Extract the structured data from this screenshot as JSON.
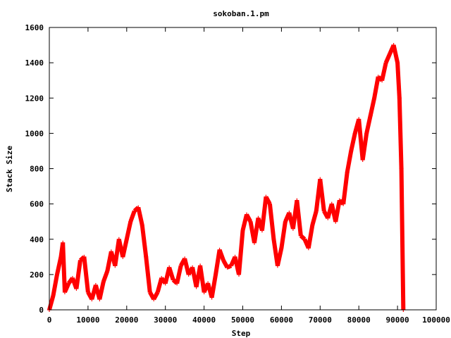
{
  "chart_data": {
    "type": "scatter",
    "title": "sokoban.1.pm",
    "xlabel": "Step",
    "ylabel": "Stack Size",
    "xlim": [
      0,
      100000
    ],
    "ylim": [
      0,
      1600
    ],
    "xticks": [
      "0",
      "10000",
      "20000",
      "30000",
      "40000",
      "50000",
      "60000",
      "70000",
      "80000",
      "90000",
      "100000"
    ],
    "yticks": [
      "0",
      "200",
      "400",
      "600",
      "800",
      "1000",
      "1200",
      "1400",
      "1600"
    ],
    "grid": false,
    "legend": "none",
    "marker": "plus",
    "series": [
      {
        "color": "#ff0000",
        "points": [
          [
            0,
            0
          ],
          [
            1000,
            80
          ],
          [
            2000,
            200
          ],
          [
            3000,
            300
          ],
          [
            3500,
            380
          ],
          [
            4000,
            100
          ],
          [
            5000,
            150
          ],
          [
            6000,
            180
          ],
          [
            7000,
            120
          ],
          [
            8000,
            280
          ],
          [
            9000,
            300
          ],
          [
            10000,
            100
          ],
          [
            11000,
            60
          ],
          [
            12000,
            140
          ],
          [
            13000,
            60
          ],
          [
            14000,
            160
          ],
          [
            15000,
            220
          ],
          [
            16000,
            330
          ],
          [
            17000,
            250
          ],
          [
            18000,
            400
          ],
          [
            19000,
            300
          ],
          [
            20000,
            400
          ],
          [
            21000,
            500
          ],
          [
            22000,
            560
          ],
          [
            23000,
            580
          ],
          [
            24000,
            480
          ],
          [
            25000,
            300
          ],
          [
            26000,
            100
          ],
          [
            27000,
            60
          ],
          [
            28000,
            100
          ],
          [
            29000,
            180
          ],
          [
            30000,
            150
          ],
          [
            31000,
            240
          ],
          [
            32000,
            170
          ],
          [
            33000,
            150
          ],
          [
            34000,
            250
          ],
          [
            35000,
            290
          ],
          [
            36000,
            200
          ],
          [
            37000,
            240
          ],
          [
            38000,
            130
          ],
          [
            39000,
            250
          ],
          [
            40000,
            100
          ],
          [
            41000,
            150
          ],
          [
            42000,
            70
          ],
          [
            43000,
            200
          ],
          [
            44000,
            340
          ],
          [
            45000,
            280
          ],
          [
            46000,
            240
          ],
          [
            47000,
            250
          ],
          [
            48000,
            300
          ],
          [
            49000,
            200
          ],
          [
            50000,
            450
          ],
          [
            51000,
            540
          ],
          [
            52000,
            500
          ],
          [
            53000,
            380
          ],
          [
            54000,
            520
          ],
          [
            55000,
            450
          ],
          [
            56000,
            640
          ],
          [
            57000,
            600
          ],
          [
            58000,
            400
          ],
          [
            59000,
            250
          ],
          [
            60000,
            350
          ],
          [
            61000,
            500
          ],
          [
            62000,
            550
          ],
          [
            63000,
            460
          ],
          [
            64000,
            620
          ],
          [
            65000,
            420
          ],
          [
            66000,
            400
          ],
          [
            67000,
            350
          ],
          [
            68000,
            480
          ],
          [
            69000,
            560
          ],
          [
            70000,
            740
          ],
          [
            71000,
            560
          ],
          [
            72000,
            520
          ],
          [
            73000,
            600
          ],
          [
            74000,
            500
          ],
          [
            75000,
            620
          ],
          [
            76000,
            600
          ],
          [
            77000,
            780
          ],
          [
            78000,
            900
          ],
          [
            79000,
            1000
          ],
          [
            80000,
            1080
          ],
          [
            81000,
            850
          ],
          [
            82000,
            1000
          ],
          [
            83000,
            1100
          ],
          [
            84000,
            1200
          ],
          [
            85000,
            1320
          ],
          [
            86000,
            1300
          ],
          [
            87000,
            1400
          ],
          [
            88000,
            1450
          ],
          [
            89000,
            1500
          ],
          [
            90000,
            1400
          ],
          [
            90500,
            1200
          ],
          [
            91000,
            800
          ],
          [
            91500,
            0
          ]
        ]
      }
    ]
  }
}
